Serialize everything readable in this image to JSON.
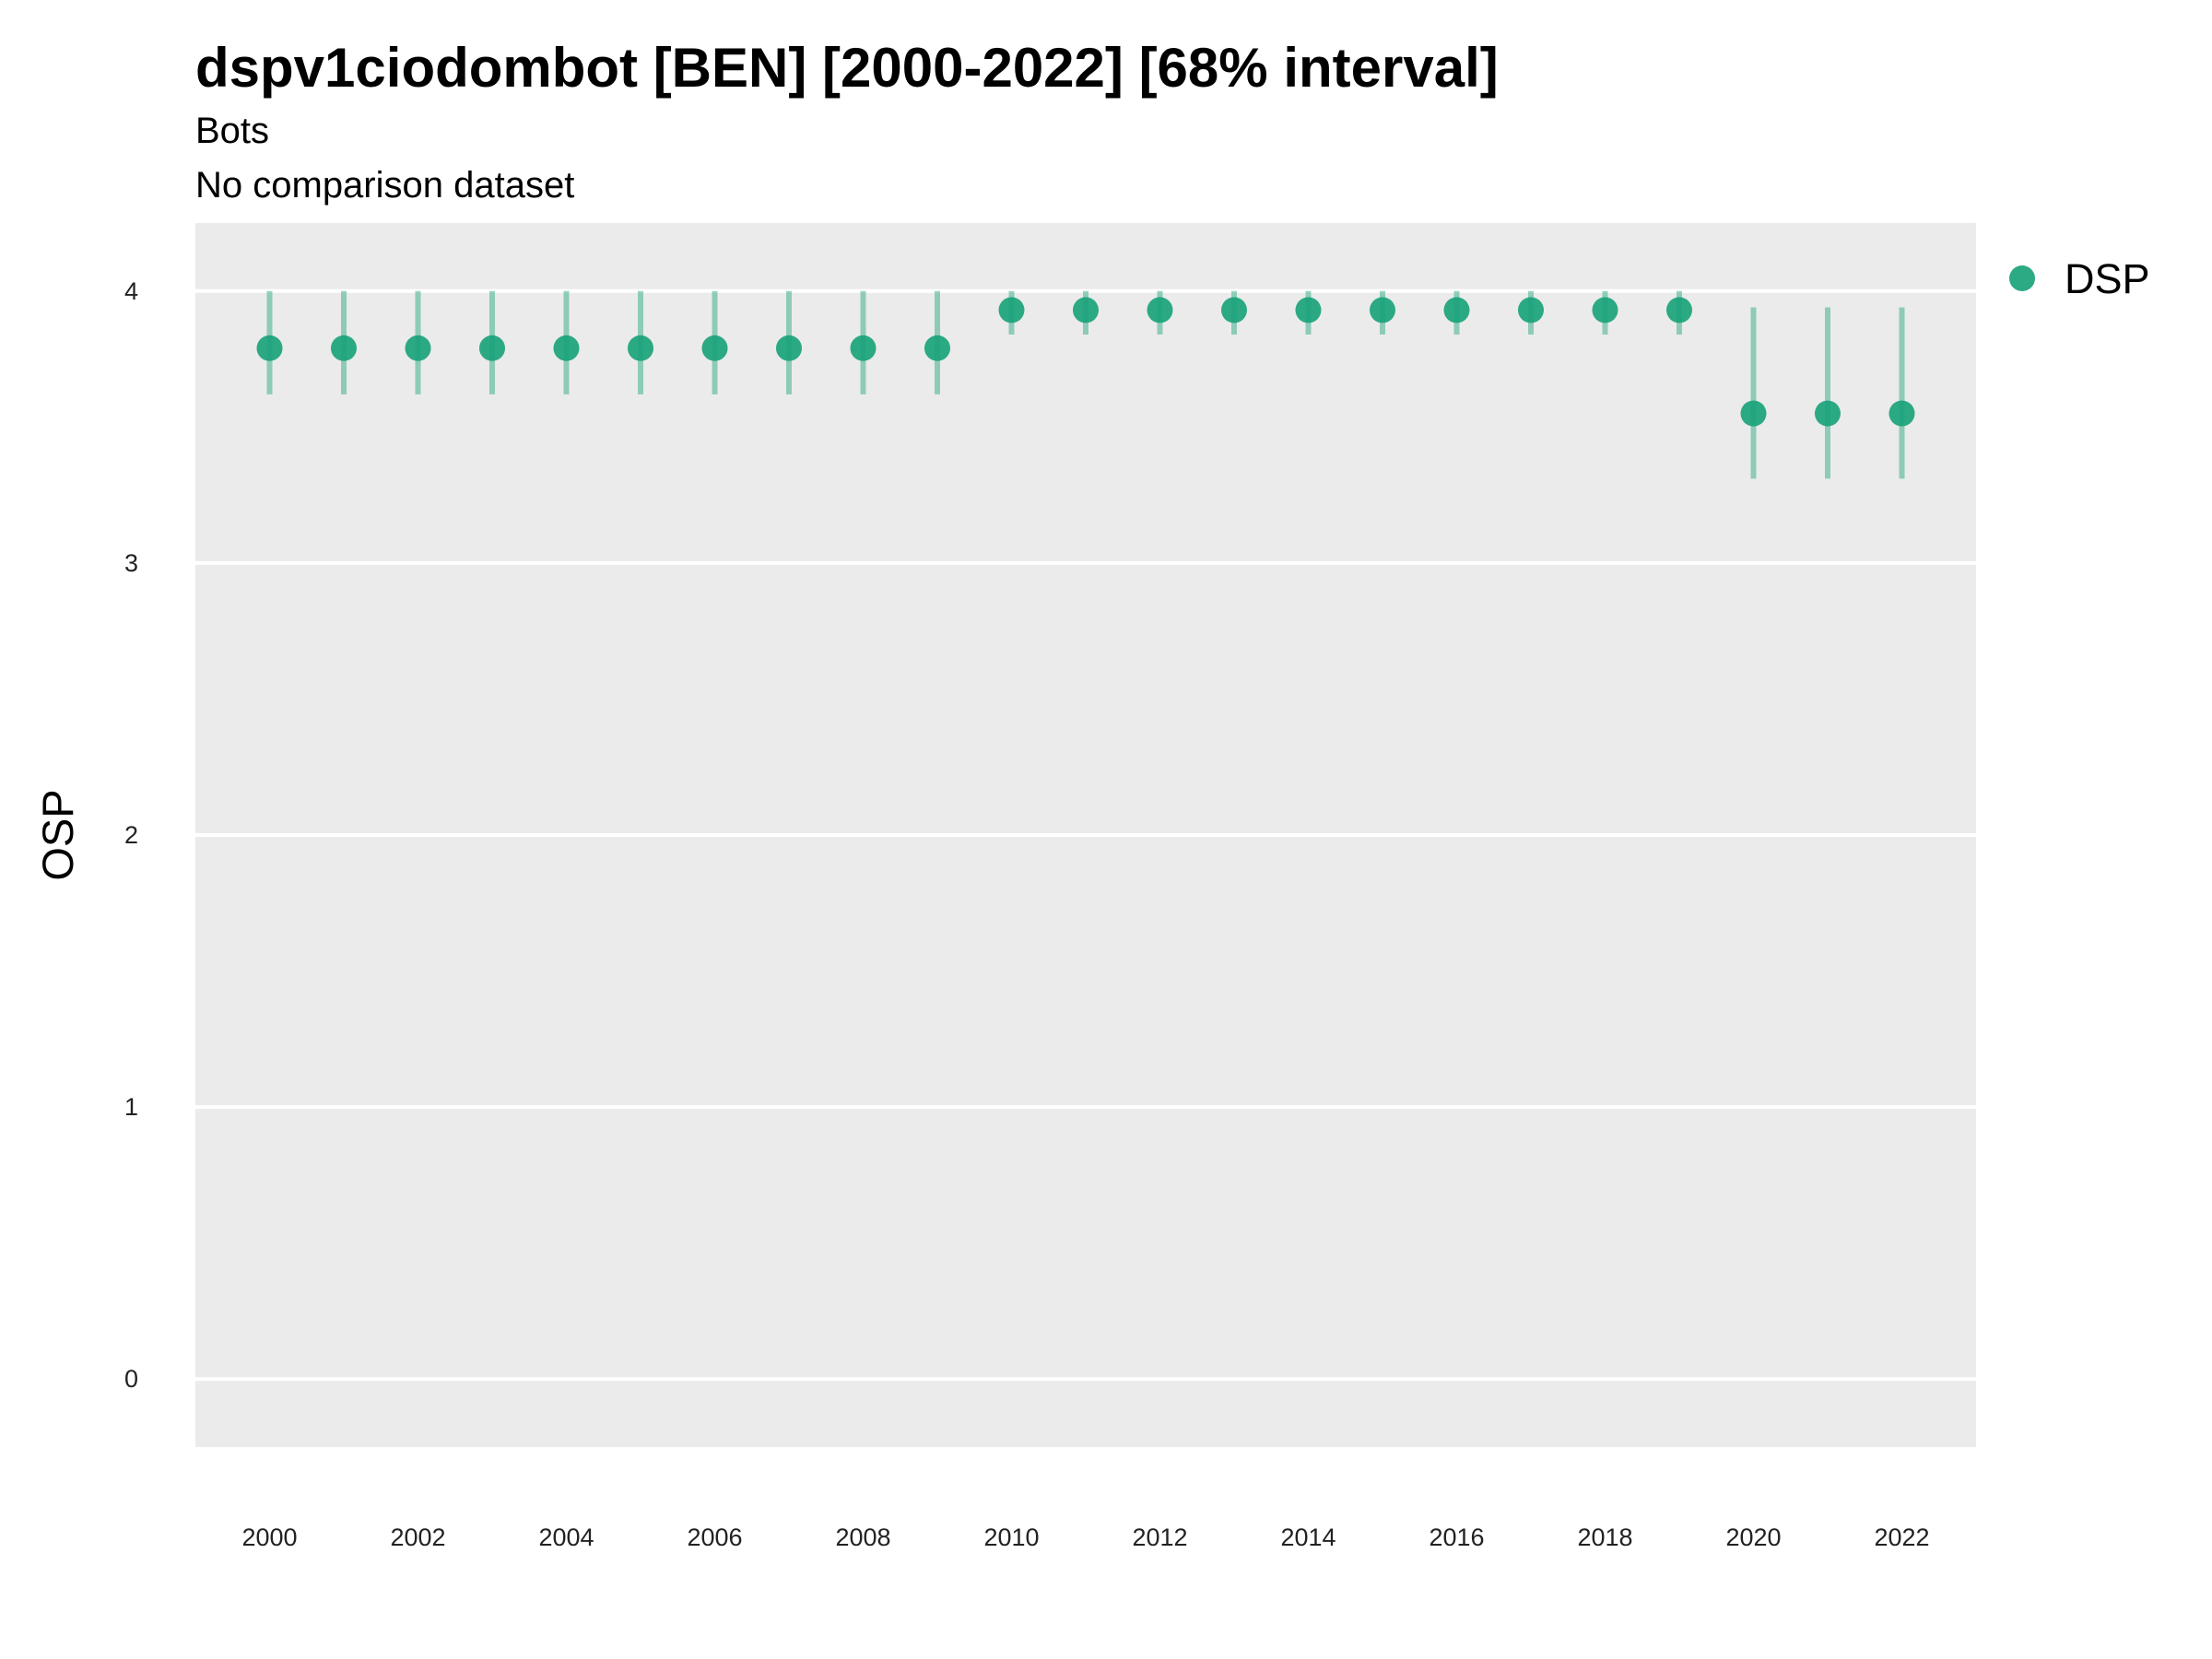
{
  "chart_data": {
    "type": "scatter",
    "title": "dspv1ciodombot [BEN] [2000-2022] [68% interval]",
    "subtitle": "Bots",
    "caption": "No comparison dataset",
    "xlabel": "",
    "ylabel": "OSP",
    "ylim": [
      -0.25,
      4.25
    ],
    "y_ticks": [
      "0",
      "1",
      "2",
      "3",
      "4"
    ],
    "x_ticks": [
      "2000",
      "2002",
      "2004",
      "2006",
      "2008",
      "2010",
      "2012",
      "2014",
      "2016",
      "2018",
      "2020",
      "2022"
    ],
    "grid": true,
    "legend_position": "right",
    "series": [
      {
        "name": "DSP",
        "color": "#1aa37a",
        "x": [
          2000,
          2001,
          2002,
          2003,
          2004,
          2005,
          2006,
          2007,
          2008,
          2009,
          2010,
          2011,
          2012,
          2013,
          2014,
          2015,
          2016,
          2017,
          2018,
          2019,
          2020,
          2021,
          2022
        ],
        "y": [
          3.79,
          3.79,
          3.79,
          3.79,
          3.79,
          3.79,
          3.79,
          3.79,
          3.79,
          3.79,
          3.93,
          3.93,
          3.93,
          3.93,
          3.93,
          3.93,
          3.93,
          3.93,
          3.93,
          3.93,
          3.55,
          3.55,
          3.55
        ],
        "lower": [
          3.62,
          3.62,
          3.62,
          3.62,
          3.62,
          3.62,
          3.62,
          3.62,
          3.62,
          3.62,
          3.84,
          3.84,
          3.84,
          3.84,
          3.84,
          3.84,
          3.84,
          3.84,
          3.84,
          3.84,
          3.31,
          3.31,
          3.31
        ],
        "upper": [
          4.0,
          4.0,
          4.0,
          4.0,
          4.0,
          4.0,
          4.0,
          4.0,
          4.0,
          4.0,
          4.0,
          4.0,
          4.0,
          4.0,
          4.0,
          4.0,
          4.0,
          4.0,
          4.0,
          4.0,
          3.94,
          3.94,
          3.94
        ]
      }
    ]
  }
}
